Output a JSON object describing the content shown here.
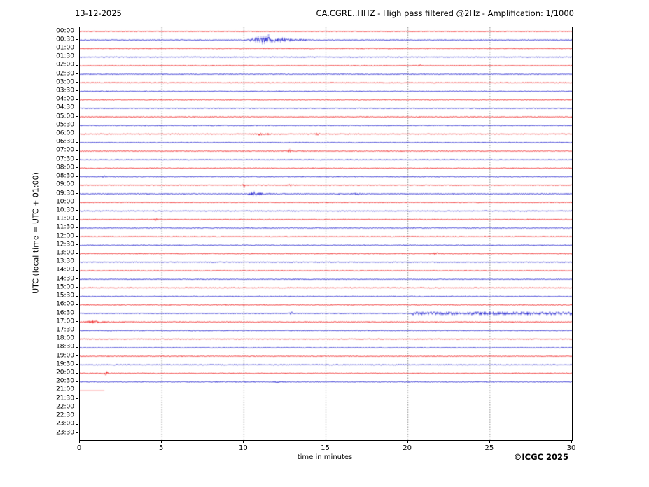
{
  "header": {
    "date": "13-12-2025",
    "title": "CA.CGRE..HHZ - High pass filtered @2Hz - Amplification: 1/1000"
  },
  "footer": {
    "copyright": "©ICGC 2025"
  },
  "axes": {
    "x_label": "time in minutes",
    "y_label": "UTC (local time = UTC + 01:00)",
    "x_ticks": [
      0,
      5,
      10,
      15,
      20,
      25,
      30
    ],
    "x_range": [
      0,
      30
    ],
    "grid_minutes": [
      5,
      10,
      15,
      20,
      25
    ]
  },
  "colors": {
    "red": "#ee1111",
    "blue": "#1414cc",
    "red_faint": "#ff9999",
    "grid": "#777777",
    "axis": "#000000"
  },
  "chart_data": {
    "type": "line",
    "description": "24-hour helicorder seismogram, one 30-minute trace per row, alternating red/blue, amplitude in pixels",
    "minutes_per_row": 30,
    "base_noise_amp": 0.55,
    "rows": [
      {
        "label": "00:00",
        "color": "red",
        "events": []
      },
      {
        "label": "00:30",
        "color": "blue",
        "events": [
          {
            "kind": "burst",
            "start": 9.7,
            "end": 13.8,
            "peak": 11.3,
            "amp": 6.5
          }
        ]
      },
      {
        "label": "01:00",
        "color": "red",
        "events": []
      },
      {
        "label": "01:30",
        "color": "blue",
        "events": []
      },
      {
        "label": "02:00",
        "color": "red",
        "events": [
          {
            "kind": "spike",
            "at": 20.7,
            "amp": 1.0
          }
        ]
      },
      {
        "label": "02:30",
        "color": "blue",
        "events": []
      },
      {
        "label": "03:00",
        "color": "red",
        "events": []
      },
      {
        "label": "03:30",
        "color": "blue",
        "events": []
      },
      {
        "label": "04:00",
        "color": "red",
        "events": []
      },
      {
        "label": "04:30",
        "color": "blue",
        "events": []
      },
      {
        "label": "05:00",
        "color": "red",
        "events": []
      },
      {
        "label": "05:30",
        "color": "blue",
        "events": []
      },
      {
        "label": "06:00",
        "color": "red",
        "events": [
          {
            "kind": "burst",
            "start": 10.3,
            "end": 12.4,
            "peak": 11.0,
            "amp": 1.5
          },
          {
            "kind": "spike",
            "at": 14.5,
            "amp": 1.5
          }
        ]
      },
      {
        "label": "06:30",
        "color": "blue",
        "events": []
      },
      {
        "label": "07:00",
        "color": "red",
        "events": [
          {
            "kind": "spike",
            "at": 12.8,
            "amp": 1.8
          }
        ]
      },
      {
        "label": "07:30",
        "color": "blue",
        "events": []
      },
      {
        "label": "08:00",
        "color": "red",
        "events": []
      },
      {
        "label": "08:30",
        "color": "blue",
        "events": [
          {
            "kind": "spike",
            "at": 1.5,
            "amp": 1.1
          }
        ]
      },
      {
        "label": "09:00",
        "color": "red",
        "events": [
          {
            "kind": "spike",
            "at": 10.0,
            "amp": 1.4
          },
          {
            "kind": "spike",
            "at": 12.8,
            "amp": 1.4
          }
        ]
      },
      {
        "label": "09:30",
        "color": "blue",
        "events": [
          {
            "kind": "burst",
            "start": 9.8,
            "end": 11.8,
            "peak": 10.6,
            "amp": 3.0
          },
          {
            "kind": "burst",
            "start": 15.5,
            "end": 16.2,
            "peak": 15.8,
            "amp": 1.2
          },
          {
            "kind": "burst",
            "start": 16.5,
            "end": 17.3,
            "peak": 16.9,
            "amp": 1.5
          }
        ]
      },
      {
        "label": "10:00",
        "color": "red",
        "events": []
      },
      {
        "label": "10:30",
        "color": "blue",
        "events": []
      },
      {
        "label": "11:00",
        "color": "red",
        "events": [
          {
            "kind": "spike",
            "at": 4.65,
            "amp": 1.2
          }
        ]
      },
      {
        "label": "11:30",
        "color": "blue",
        "events": []
      },
      {
        "label": "12:00",
        "color": "red",
        "events": []
      },
      {
        "label": "12:30",
        "color": "blue",
        "events": []
      },
      {
        "label": "13:00",
        "color": "red",
        "events": [
          {
            "kind": "spike",
            "at": 21.7,
            "amp": 1.4
          }
        ]
      },
      {
        "label": "13:30",
        "color": "blue",
        "events": []
      },
      {
        "label": "14:00",
        "color": "red",
        "events": []
      },
      {
        "label": "14:30",
        "color": "blue",
        "events": []
      },
      {
        "label": "15:00",
        "color": "red",
        "events": []
      },
      {
        "label": "15:30",
        "color": "blue",
        "events": []
      },
      {
        "label": "16:00",
        "color": "red",
        "events": []
      },
      {
        "label": "16:30",
        "color": "blue",
        "events": [
          {
            "kind": "spike",
            "at": 12.9,
            "amp": 1.6
          },
          {
            "kind": "noise",
            "start": 20.2,
            "end": 30,
            "amp": 1.6
          }
        ]
      },
      {
        "label": "17:00",
        "color": "red",
        "events": [
          {
            "kind": "burst",
            "start": 0.0,
            "end": 1.8,
            "peak": 0.8,
            "amp": 2.4
          }
        ]
      },
      {
        "label": "17:30",
        "color": "blue",
        "events": []
      },
      {
        "label": "18:00",
        "color": "red",
        "events": []
      },
      {
        "label": "18:30",
        "color": "blue",
        "events": []
      },
      {
        "label": "19:00",
        "color": "red",
        "events": []
      },
      {
        "label": "19:30",
        "color": "blue",
        "events": []
      },
      {
        "label": "20:00",
        "color": "red",
        "events": [
          {
            "kind": "spike",
            "at": 1.6,
            "amp": 1.8
          }
        ]
      },
      {
        "label": "20:30",
        "color": "blue",
        "events": [
          {
            "kind": "spike",
            "at": 12.0,
            "amp": 0.8
          }
        ]
      },
      {
        "label": "21:00",
        "color": "red_faint",
        "partial": {
          "start": 0,
          "end": 1.5
        },
        "events": []
      },
      {
        "label": "21:30",
        "empty": true
      },
      {
        "label": "22:00",
        "empty": true
      },
      {
        "label": "22:30",
        "empty": true
      },
      {
        "label": "23:00",
        "empty": true
      },
      {
        "label": "23:30",
        "empty": true
      }
    ]
  }
}
